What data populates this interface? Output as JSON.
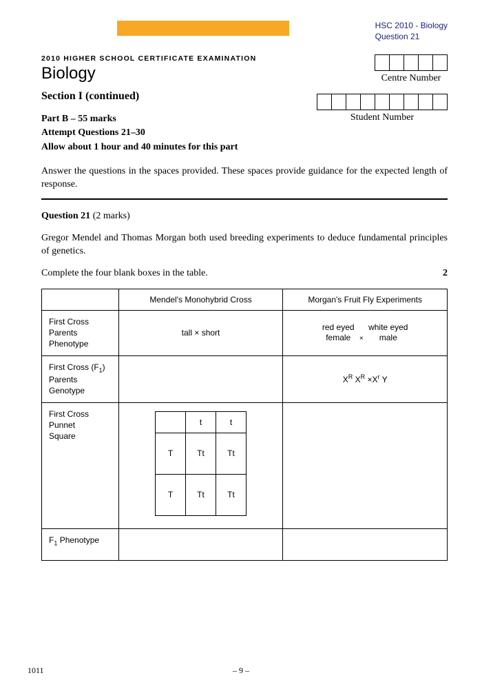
{
  "colors": {
    "orange": "#f9a825",
    "header_text": "#1a237e"
  },
  "header": {
    "line1": "HSC 2010 - Biology",
    "line2": "Question 21"
  },
  "exam_line": "2010 HIGHER SCHOOL CERTIFICATE EXAMINATION",
  "subject": "Biology",
  "section_title": "Section I (continued)",
  "part": {
    "line1": "Part B – 55 marks",
    "line2": "Attempt Questions 21–30",
    "line3": "Allow about 1 hour and 40 minutes for this part"
  },
  "centre": {
    "label": "Centre Number",
    "cells": 5
  },
  "student": {
    "label": "Student Number",
    "cells": 9
  },
  "instructions": "Answer the questions in the spaces provided. These spaces provide guidance for the expected length of response.",
  "question": {
    "label": "Question 21",
    "marks_text": "(2 marks)",
    "intro": "Gregor Mendel and Thomas Morgan both used breeding experiments to deduce fundamental principles of genetics.",
    "task": "Complete the four blank boxes in the table.",
    "mark_value": "2"
  },
  "table": {
    "col1": "Mendel's Monohybrid Cross",
    "col2": "Morgan's Fruit Fly Experiments",
    "rows": {
      "r1": {
        "label": "First Cross\nParents\nPhenotype",
        "c1": "tall × short",
        "c2_left": "red eyed\nfemale",
        "c2_right": "white eyed\nmale",
        "c2_mid": "×"
      },
      "r2": {
        "label_pre": "First Cross (F",
        "label_sub": "1",
        "label_post": ")\nParents\nGenotype",
        "c2_a": "X",
        "c2_a_sup": "R",
        "c2_b": " X",
        "c2_b_sup": "R",
        "c2_mid": "  ×",
        "c2_c": "X",
        "c2_c_sup": "r",
        "c2_d": " Y"
      },
      "r3": {
        "label": "First Cross\nPunnet\nSquare",
        "punnett": {
          "top": [
            "t",
            "t"
          ],
          "left": [
            "T",
            "T"
          ],
          "cells": [
            [
              "Tt",
              "Tt"
            ],
            [
              "Tt",
              "Tt"
            ]
          ]
        }
      },
      "r4": {
        "label_pre": "F",
        "label_sub": "1",
        "label_post": " Phenotype"
      }
    }
  },
  "footer": {
    "code": "1011",
    "page": "– 9 –"
  }
}
